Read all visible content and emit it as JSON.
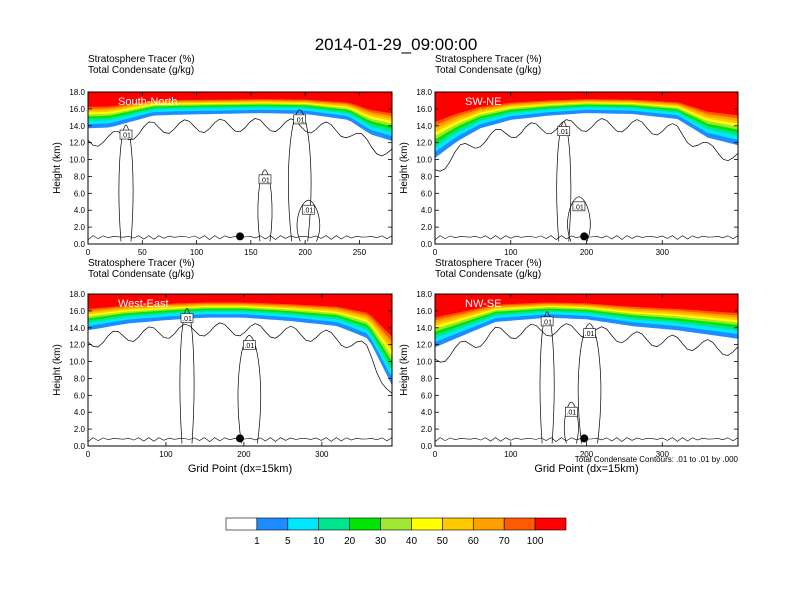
{
  "title": "2014-01-29_09:00:00",
  "colors": {
    "palette": [
      "#ffffff",
      "#1e8cff",
      "#00e8ff",
      "#00e68c",
      "#00e600",
      "#a0e632",
      "#ffff00",
      "#ffc800",
      "#ffa000",
      "#ff5a00",
      "#ff0000"
    ]
  },
  "note": "Total Condensate Contours: .01 to .01 by .000",
  "chart_data": [
    {
      "type": "heatmap",
      "region": "South-North",
      "title_lines": [
        "Stratosphere Tracer   (%)",
        "Total Condensate   (g/kg)"
      ],
      "xlabel": "",
      "ylabel": "Height (km)",
      "xlim": [
        0,
        280
      ],
      "ylim": [
        0,
        18
      ],
      "xticks": [
        "0",
        "50",
        "100",
        "150",
        "200",
        "250"
      ],
      "yticks": [
        "0.0",
        "2.0",
        "4.0",
        "6.0",
        "8.0",
        "10.0",
        "12.0",
        "14.0",
        "16.0",
        "18.0"
      ],
      "tracer_top": [
        [
          0,
          14.5
        ],
        [
          20,
          14.6
        ],
        [
          40,
          15.3
        ],
        [
          60,
          16.0
        ],
        [
          80,
          16.1
        ],
        [
          120,
          16.2
        ],
        [
          160,
          16.3
        ],
        [
          200,
          16.2
        ],
        [
          240,
          15.5
        ],
        [
          260,
          13.8
        ],
        [
          280,
          13.0
        ]
      ],
      "condensate_contour_label": ".01",
      "contour_labels": [
        [
          35,
          12.9
        ],
        [
          195,
          14.7
        ],
        [
          163,
          7.6
        ],
        [
          203,
          4.0
        ]
      ],
      "marker": [
        140,
        0.9
      ]
    },
    {
      "type": "heatmap",
      "region": "SW-NE",
      "title_lines": [
        "Stratosphere Tracer   (%)",
        "Total Condensate   (g/kg)"
      ],
      "xlabel": "",
      "ylabel": "Height (km)",
      "xlim": [
        0,
        400
      ],
      "ylim": [
        0,
        18
      ],
      "xticks": [
        "0",
        "100",
        "200",
        "300"
      ],
      "yticks": [
        "0.0",
        "2.0",
        "4.0",
        "6.0",
        "8.0",
        "10.0",
        "12.0",
        "14.0",
        "16.0",
        "18.0"
      ],
      "tracer_top": [
        [
          0,
          11.0
        ],
        [
          30,
          13.0
        ],
        [
          60,
          14.5
        ],
        [
          100,
          15.5
        ],
        [
          150,
          16.0
        ],
        [
          200,
          16.3
        ],
        [
          260,
          16.2
        ],
        [
          320,
          15.6
        ],
        [
          360,
          13.4
        ],
        [
          400,
          12.5
        ]
      ],
      "condensate_contour_label": ".01",
      "contour_labels": [
        [
          170,
          13.3
        ],
        [
          190,
          4.4
        ]
      ],
      "marker": [
        197,
        0.9
      ]
    },
    {
      "type": "heatmap",
      "region": "West-East",
      "title_lines": [
        "Stratosphere Tracer   (%)",
        "Total Condensate   (g/kg)"
      ],
      "xlabel": "Grid Point (dx=15km)",
      "ylabel": "Height (km)",
      "xlim": [
        0,
        390
      ],
      "ylim": [
        0,
        18
      ],
      "xticks": [
        "0",
        "100",
        "200",
        "300"
      ],
      "yticks": [
        "0.0",
        "2.0",
        "4.0",
        "6.0",
        "8.0",
        "10.0",
        "12.0",
        "14.0",
        "16.0",
        "18.0"
      ],
      "tracer_top": [
        [
          0,
          14.5
        ],
        [
          50,
          15.3
        ],
        [
          100,
          15.7
        ],
        [
          150,
          16.0
        ],
        [
          200,
          16.0
        ],
        [
          260,
          15.6
        ],
        [
          320,
          15.0
        ],
        [
          360,
          13.5
        ],
        [
          390,
          8.0
        ]
      ],
      "condensate_contour_label": ".01",
      "contour_labels": [
        [
          127,
          15.1
        ],
        [
          207,
          11.9
        ]
      ],
      "marker": [
        195,
        0.9
      ]
    },
    {
      "type": "heatmap",
      "region": "NW-SE",
      "title_lines": [
        "Stratosphere Tracer   (%)",
        "Total Condensate   (g/kg)"
      ],
      "xlabel": "Grid Point (dx=15km)",
      "ylabel": "Height (km)",
      "xlim": [
        0,
        400
      ],
      "ylim": [
        0,
        18
      ],
      "xticks": [
        "0",
        "100",
        "200",
        "300"
      ],
      "yticks": [
        "0.0",
        "2.0",
        "4.0",
        "6.0",
        "8.0",
        "10.0",
        "12.0",
        "14.0",
        "16.0",
        "18.0"
      ],
      "tracer_top": [
        [
          0,
          12.5
        ],
        [
          40,
          14.0
        ],
        [
          80,
          15.5
        ],
        [
          150,
          16.0
        ],
        [
          200,
          15.8
        ],
        [
          260,
          15.0
        ],
        [
          320,
          14.5
        ],
        [
          400,
          13.5
        ]
      ],
      "condensate_contour_label": ".01",
      "contour_labels": [
        [
          148,
          14.7
        ],
        [
          204,
          13.3
        ],
        [
          180,
          4.0
        ]
      ],
      "marker": [
        197,
        0.9
      ]
    }
  ],
  "colorbar": {
    "labels": [
      "1",
      "5",
      "10",
      "20",
      "30",
      "40",
      "50",
      "60",
      "70",
      "100"
    ]
  }
}
